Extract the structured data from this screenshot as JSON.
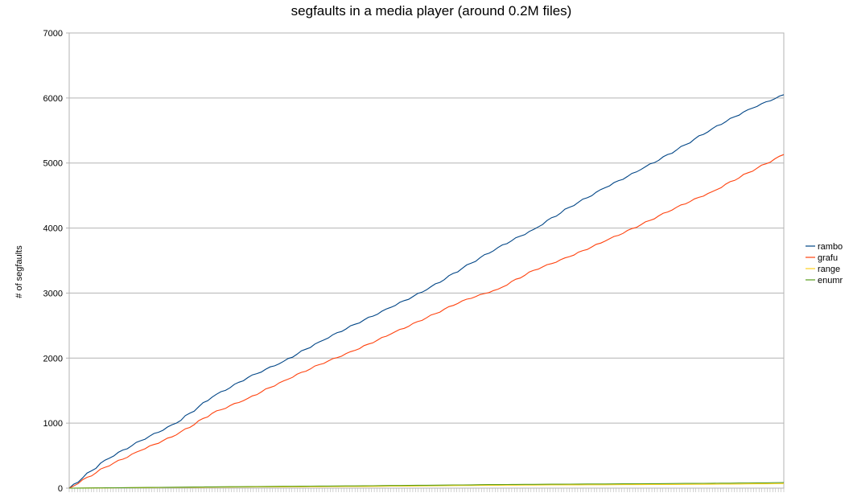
{
  "chart_data": {
    "type": "line",
    "title": "segfaults in a media player (around 0.2M files)",
    "xlabel": "",
    "ylabel": "# of segfaults",
    "ylim": [
      0,
      7000
    ],
    "yticks": [
      0,
      1000,
      2000,
      3000,
      4000,
      5000,
      6000,
      7000
    ],
    "x_range": [
      0,
      100
    ],
    "grid": true,
    "legend_position": "right",
    "series": [
      {
        "name": "rambo",
        "color": "#004586",
        "x": [
          0,
          5,
          10,
          15,
          20,
          25,
          30,
          35,
          40,
          45,
          50,
          55,
          60,
          65,
          70,
          75,
          80,
          85,
          90,
          95,
          100
        ],
        "values": [
          0,
          430,
          730,
          1000,
          1400,
          1700,
          1950,
          2250,
          2520,
          2780,
          3050,
          3380,
          3700,
          3980,
          4320,
          4620,
          4900,
          5200,
          5530,
          5820,
          6050
        ]
      },
      {
        "name": "grafu",
        "color": "#ff420e",
        "x": [
          0,
          5,
          10,
          15,
          20,
          25,
          30,
          35,
          40,
          45,
          50,
          55,
          60,
          65,
          70,
          75,
          80,
          85,
          90,
          95,
          100
        ],
        "values": [
          0,
          320,
          580,
          820,
          1150,
          1380,
          1650,
          1900,
          2120,
          2370,
          2620,
          2880,
          3060,
          3350,
          3560,
          3800,
          4050,
          4320,
          4560,
          4850,
          5130
        ]
      },
      {
        "name": "range",
        "color": "#ffd320",
        "x": [
          0,
          10,
          20,
          30,
          40,
          50,
          60,
          70,
          80,
          90,
          100
        ],
        "values": [
          0,
          8,
          15,
          20,
          25,
          35,
          45,
          50,
          55,
          60,
          70
        ]
      },
      {
        "name": "enumr",
        "color": "#579d1c",
        "x": [
          0,
          10,
          20,
          30,
          40,
          50,
          60,
          70,
          80,
          90,
          100
        ],
        "values": [
          0,
          10,
          20,
          28,
          35,
          45,
          55,
          62,
          68,
          75,
          85
        ]
      }
    ]
  }
}
